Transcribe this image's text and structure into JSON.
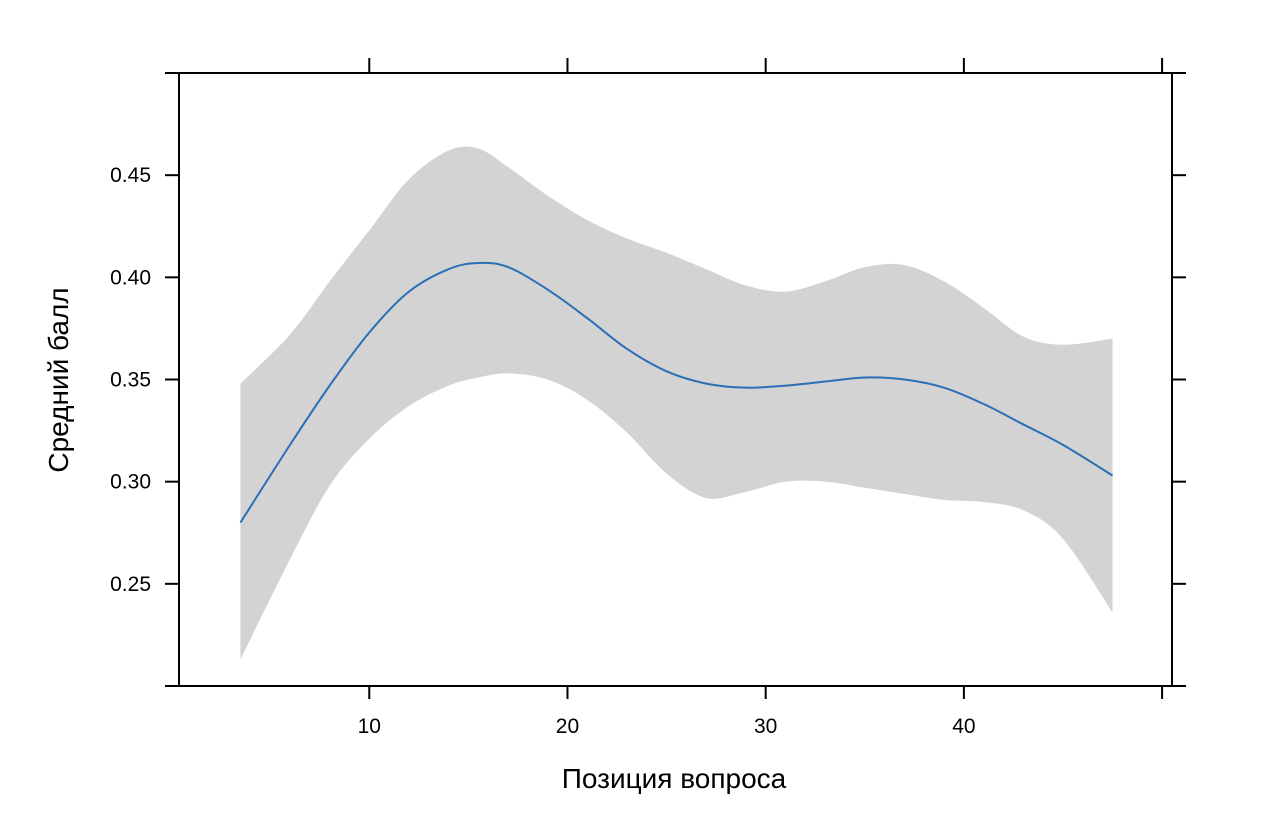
{
  "chart_data": {
    "type": "line",
    "xlabel": "Позиция вопроса",
    "ylabel": "Средний балл",
    "xlim": [
      0.4,
      50.5
    ],
    "ylim": [
      0.2,
      0.5
    ],
    "x_ticks": [
      10,
      20,
      30,
      40
    ],
    "x_tick_labels": [
      "10",
      "20",
      "30",
      "40"
    ],
    "x_top_ticks": [
      10,
      20,
      30,
      40,
      50
    ],
    "y_ticks": [
      0.25,
      0.3,
      0.35,
      0.4,
      0.45
    ],
    "y_tick_labels": [
      "0.25",
      "0.30",
      "0.35",
      "0.40",
      "0.45"
    ],
    "grid": false,
    "colors": {
      "line": "#2a6fb5",
      "band": "#d3d3d3"
    },
    "series": [
      {
        "x": [
          3.5,
          6,
          8,
          10,
          12,
          14,
          15.5,
          17,
          19,
          21,
          23,
          25,
          27,
          29,
          31,
          33,
          35,
          37,
          39,
          41,
          43,
          45,
          47.5
        ],
        "y": [
          0.28,
          0.318,
          0.347,
          0.373,
          0.393,
          0.404,
          0.407,
          0.405,
          0.394,
          0.38,
          0.365,
          0.354,
          0.348,
          0.346,
          0.347,
          0.349,
          0.351,
          0.35,
          0.346,
          0.338,
          0.328,
          0.318,
          0.303
        ],
        "lower": [
          0.213,
          0.262,
          0.298,
          0.321,
          0.337,
          0.347,
          0.351,
          0.353,
          0.35,
          0.34,
          0.324,
          0.304,
          0.292,
          0.295,
          0.3,
          0.3,
          0.297,
          0.294,
          0.291,
          0.29,
          0.286,
          0.272,
          0.236
        ],
        "upper": [
          0.348,
          0.372,
          0.398,
          0.423,
          0.448,
          0.462,
          0.463,
          0.454,
          0.44,
          0.428,
          0.419,
          0.412,
          0.404,
          0.396,
          0.393,
          0.398,
          0.405,
          0.406,
          0.398,
          0.385,
          0.371,
          0.367,
          0.37
        ]
      }
    ]
  }
}
